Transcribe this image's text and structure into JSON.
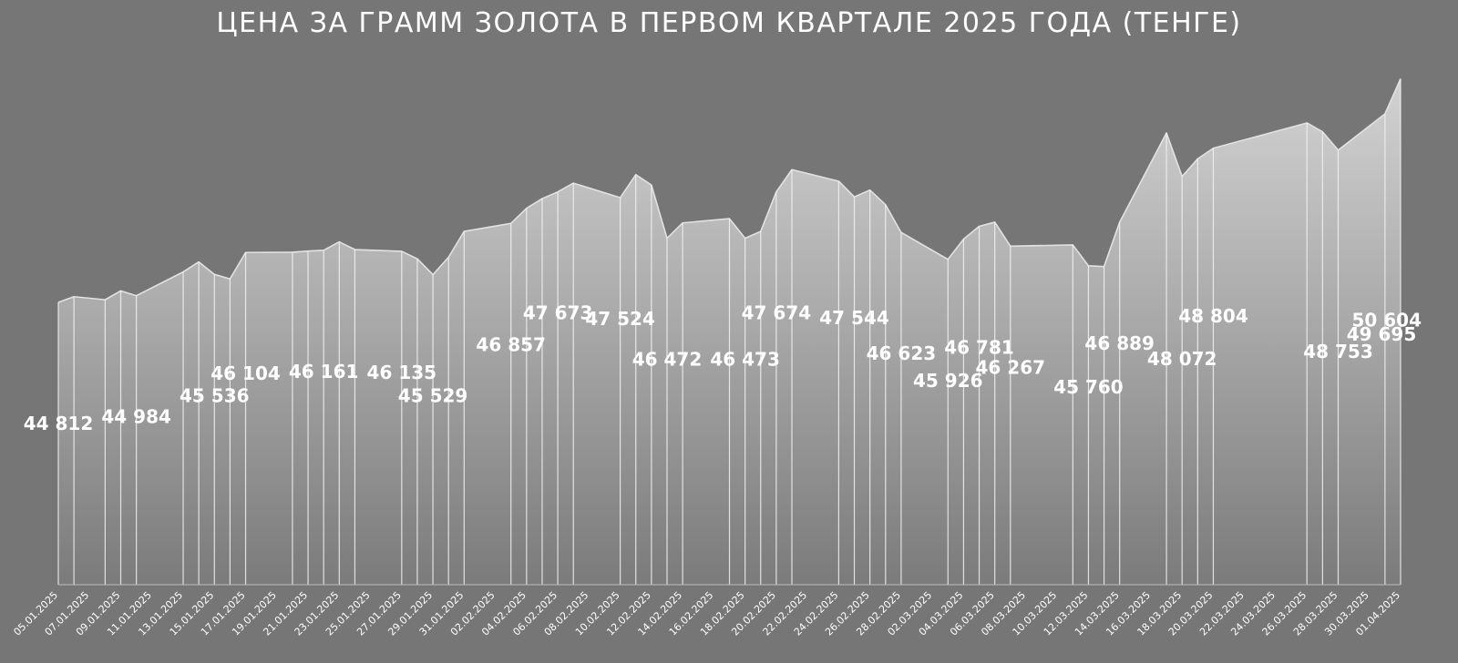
{
  "chart_data": {
    "type": "area",
    "title": "ЦЕНА ЗА ГРАММ ЗОЛОТА В ПЕРВОМ КВАРТАЛЕ 2025 ГОДА (ТЕНГЕ)",
    "xlabel": "",
    "ylabel": "",
    "ylim": [
      37500,
      51700
    ],
    "grid": false,
    "legend": "none",
    "colors": {
      "background": "#767676",
      "area_top": "#d2d2d2",
      "area_bottom": "#7c7c7c",
      "line": "#e0e0e0",
      "text": "#ffffff"
    },
    "x_ticks": [
      "05.01.2025",
      "07.01.2025",
      "09.01.2025",
      "11.01.2025",
      "13.01.2025",
      "15.01.2025",
      "17.01.2025",
      "19.01.2025",
      "21.01.2025",
      "23.01.2025",
      "25.01.2025",
      "27.01.2025",
      "29.01.2025",
      "31.01.2025",
      "02.02.2025",
      "04.02.2025",
      "06.02.2025",
      "08.02.2025",
      "10.02.2025",
      "12.02.2025",
      "14.02.2025",
      "16.02.2025",
      "18.02.2025",
      "20.02.2025",
      "22.02.2025",
      "24.02.2025",
      "26.02.2025",
      "28.02.2025",
      "02.03.2025",
      "04.03.2025",
      "06.03.2025",
      "08.03.2025",
      "10.03.2025",
      "12.03.2025",
      "14.03.2025",
      "16.03.2025",
      "18.03.2025",
      "20.03.2025",
      "22.03.2025",
      "24.03.2025",
      "26.03.2025",
      "28.03.2025",
      "30.03.2025",
      "01.04.2025"
    ],
    "points": [
      {
        "x": "05.01.2025",
        "y": 44812,
        "label": "44 812"
      },
      {
        "x": "06.01.2025",
        "y": 44960
      },
      {
        "x": "08.01.2025",
        "y": 44880
      },
      {
        "x": "09.01.2025",
        "y": 45110
      },
      {
        "x": "10.01.2025",
        "y": 44984,
        "label": "44 984"
      },
      {
        "x": "13.01.2025",
        "y": 45600
      },
      {
        "x": "14.01.2025",
        "y": 45860
      },
      {
        "x": "15.01.2025",
        "y": 45536,
        "label": "45 536"
      },
      {
        "x": "16.01.2025",
        "y": 45420
      },
      {
        "x": "17.01.2025",
        "y": 46104,
        "label": "46 104"
      },
      {
        "x": "20.01.2025",
        "y": 46110
      },
      {
        "x": "21.01.2025",
        "y": 46140
      },
      {
        "x": "22.01.2025",
        "y": 46161,
        "label": "46 161"
      },
      {
        "x": "23.01.2025",
        "y": 46380
      },
      {
        "x": "24.01.2025",
        "y": 46180
      },
      {
        "x": "27.01.2025",
        "y": 46135,
        "label": "46 135"
      },
      {
        "x": "28.01.2025",
        "y": 45940
      },
      {
        "x": "29.01.2025",
        "y": 45529,
        "label": "45 529"
      },
      {
        "x": "30.01.2025",
        "y": 45980
      },
      {
        "x": "31.01.2025",
        "y": 46650
      },
      {
        "x": "03.02.2025",
        "y": 46857,
        "label": "46 857"
      },
      {
        "x": "04.02.2025",
        "y": 47250
      },
      {
        "x": "05.02.2025",
        "y": 47500
      },
      {
        "x": "06.02.2025",
        "y": 47673,
        "label": "47 673"
      },
      {
        "x": "07.02.2025",
        "y": 47900
      },
      {
        "x": "10.02.2025",
        "y": 47524,
        "label": "47 524"
      },
      {
        "x": "11.02.2025",
        "y": 48120
      },
      {
        "x": "12.02.2025",
        "y": 47850
      },
      {
        "x": "13.02.2025",
        "y": 46472,
        "label": "46 472"
      },
      {
        "x": "14.02.2025",
        "y": 46870
      },
      {
        "x": "17.02.2025",
        "y": 46980
      },
      {
        "x": "18.02.2025",
        "y": 46473,
        "label": "46 473"
      },
      {
        "x": "19.02.2025",
        "y": 46650
      },
      {
        "x": "20.02.2025",
        "y": 47674,
        "label": "47 674"
      },
      {
        "x": "21.02.2025",
        "y": 48250
      },
      {
        "x": "24.02.2025",
        "y": 47950
      },
      {
        "x": "25.02.2025",
        "y": 47544,
        "label": "47 544"
      },
      {
        "x": "26.02.2025",
        "y": 47720
      },
      {
        "x": "27.02.2025",
        "y": 47340
      },
      {
        "x": "28.02.2025",
        "y": 46623,
        "label": "46 623"
      },
      {
        "x": "03.03.2025",
        "y": 45926,
        "label": "45 926"
      },
      {
        "x": "04.03.2025",
        "y": 46450
      },
      {
        "x": "05.03.2025",
        "y": 46781,
        "label": "46 781"
      },
      {
        "x": "06.03.2025",
        "y": 46890
      },
      {
        "x": "07.03.2025",
        "y": 46267,
        "label": "46 267"
      },
      {
        "x": "11.03.2025",
        "y": 46300
      },
      {
        "x": "12.03.2025",
        "y": 45760,
        "label": "45 760"
      },
      {
        "x": "13.03.2025",
        "y": 45740
      },
      {
        "x": "14.03.2025",
        "y": 46889,
        "label": "46 889"
      },
      {
        "x": "17.03.2025",
        "y": 49200
      },
      {
        "x": "18.03.2025",
        "y": 48072,
        "label": "48 072"
      },
      {
        "x": "19.03.2025",
        "y": 48530
      },
      {
        "x": "20.03.2025",
        "y": 48804,
        "label": "48 804"
      },
      {
        "x": "26.03.2025",
        "y": 49460
      },
      {
        "x": "27.03.2025",
        "y": 49230
      },
      {
        "x": "28.03.2025",
        "y": 48753,
        "label": "48 753"
      },
      {
        "x": "31.03.2025",
        "y": 49695,
        "label": "49 695"
      },
      {
        "x": "01.04.2025",
        "y": 50604,
        "label": "50 604"
      }
    ]
  }
}
